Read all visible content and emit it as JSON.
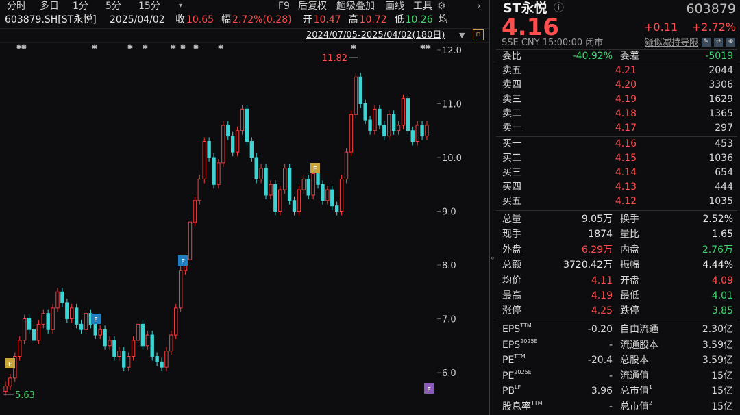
{
  "toolbar": {
    "tabs": [
      "分时",
      "多日",
      "1分",
      "5分",
      "15分"
    ],
    "tools": [
      "F9",
      "后复权",
      "超级叠加",
      "画线",
      "工具"
    ]
  },
  "info": {
    "code": "603879.SH[ST永悦]",
    "date": "2025/04/02",
    "items": [
      {
        "label": "收",
        "value": "10.65",
        "color": "#ff4d4d"
      },
      {
        "label": "幅",
        "value": "2.72%(0.28)",
        "color": "#ff4d4d"
      },
      {
        "label": "开",
        "value": "10.47",
        "color": "#ff4d4d"
      },
      {
        "label": "高",
        "value": "10.72",
        "color": "#ff4d4d"
      },
      {
        "label": "低",
        "value": "10.26",
        "color": "#3fd46f"
      }
    ],
    "avg": "均"
  },
  "range": "2024/07/05-2025/04/02(180日)",
  "chart": {
    "ylim": [
      5.3,
      12.14
    ],
    "yticks": [
      {
        "value": 12,
        "label": "12.0"
      },
      {
        "value": 11,
        "label": "11.0"
      },
      {
        "value": 10,
        "label": "10.0"
      },
      {
        "value": 9,
        "label": "9.0"
      },
      {
        "value": 8,
        "label": "8.0"
      },
      {
        "value": 7,
        "label": "7.0"
      },
      {
        "value": 6,
        "label": "6.0"
      }
    ],
    "up_color": "#ff3b3b",
    "down_color": "#3fd3d3",
    "high_label": "11.82",
    "low_label": "5.63",
    "close": [
      5.75,
      5.9,
      6.3,
      6.6,
      7.0,
      6.8,
      6.6,
      6.9,
      7.1,
      6.8,
      7.2,
      7.5,
      7.3,
      7.0,
      7.2,
      6.9,
      6.8,
      7.1,
      6.9,
      6.7,
      6.8,
      6.5,
      6.6,
      6.3,
      6.4,
      6.1,
      6.3,
      6.6,
      6.9,
      6.5,
      6.7,
      6.3,
      6.2,
      6.1,
      6.4,
      6.7,
      7.2,
      7.9,
      8.1,
      8.8,
      9.2,
      9.6,
      10.3,
      10.0,
      9.5,
      9.9,
      10.6,
      10.4,
      10.1,
      10.5,
      10.9,
      10.3,
      10.0,
      9.6,
      9.8,
      9.3,
      9.5,
      9.0,
      9.4,
      9.8,
      9.2,
      9.0,
      9.4,
      9.6,
      9.3,
      9.7,
      9.5,
      9.2,
      9.4,
      9.1,
      9.0,
      9.6,
      10.1,
      10.8,
      11.5,
      11.0,
      10.7,
      10.5,
      10.9,
      10.6,
      10.4,
      10.8,
      10.5,
      10.6,
      11.1,
      10.5,
      10.3,
      10.6,
      10.4,
      10.6
    ],
    "events": [
      {
        "label": "E",
        "color": "#c9a43c"
      },
      {
        "label": "F",
        "color": "#1f7fc0"
      },
      {
        "label": "F",
        "color": "#1f7fc0"
      },
      {
        "label": "E",
        "color": "#c9a43c"
      },
      {
        "label": "F",
        "color": "#8a5ab8"
      }
    ]
  },
  "quote": {
    "name": "ST永悦",
    "code": "603879",
    "price": "4.16",
    "change": "+0.11",
    "pct": "+2.72%",
    "meta": "SSE  CNY  15:00:00  闭市",
    "tag": "疑似减持导限",
    "ratio": {
      "label": "委比",
      "value": "-40.92%",
      "label2": "委差",
      "value2": "-5019"
    },
    "asks": [
      {
        "label": "卖五",
        "price": "4.21",
        "volume": "2044"
      },
      {
        "label": "卖四",
        "price": "4.20",
        "volume": "3306"
      },
      {
        "label": "卖三",
        "price": "4.19",
        "volume": "1629"
      },
      {
        "label": "卖二",
        "price": "4.18",
        "volume": "1365"
      },
      {
        "label": "卖一",
        "price": "4.17",
        "volume": "297"
      }
    ],
    "bids": [
      {
        "label": "买一",
        "price": "4.16",
        "volume": "453"
      },
      {
        "label": "买二",
        "price": "4.15",
        "volume": "1036"
      },
      {
        "label": "买三",
        "price": "4.14",
        "volume": "654"
      },
      {
        "label": "买四",
        "price": "4.13",
        "volume": "444"
      },
      {
        "label": "买五",
        "price": "4.12",
        "volume": "1035"
      }
    ],
    "stats": [
      [
        {
          "label": "总量",
          "value": "9.05万",
          "color": "#e6e6e6"
        },
        {
          "label": "换手",
          "value": "2.52%",
          "color": "#e6e6e6"
        }
      ],
      [
        {
          "label": "现手",
          "value": "1874",
          "color": "#e6e6e6"
        },
        {
          "label": "量比",
          "value": "1.65",
          "color": "#e6e6e6"
        }
      ],
      [
        {
          "label": "外盘",
          "value": "6.29万",
          "color": "#ff4d4d"
        },
        {
          "label": "内盘",
          "value": "2.76万",
          "color": "#3fd46f"
        }
      ],
      [
        {
          "label": "总额",
          "value": "3720.42万",
          "color": "#e6e6e6"
        },
        {
          "label": "振幅",
          "value": "4.44%",
          "color": "#e6e6e6"
        }
      ],
      [
        {
          "label": "均价",
          "value": "4.11",
          "color": "#ff4d4d"
        },
        {
          "label": "开盘",
          "value": "4.09",
          "color": "#ff4d4d"
        }
      ],
      [
        {
          "label": "最高",
          "value": "4.19",
          "color": "#ff4d4d"
        },
        {
          "label": "最低",
          "value": "4.01",
          "color": "#3fd46f"
        }
      ],
      [
        {
          "label": "涨停",
          "value": "4.25",
          "color": "#ff4d4d"
        },
        {
          "label": "跌停",
          "value": "3.85",
          "color": "#3fd46f"
        }
      ]
    ],
    "fundamentals": [
      [
        {
          "label": "EPS",
          "sup": "TTM",
          "value": "-0.20"
        },
        {
          "label": "自由流通",
          "value": "2.30亿"
        }
      ],
      [
        {
          "label": "EPS",
          "sup": "2025E",
          "value": "-"
        },
        {
          "label": "流通股本",
          "value": "3.59亿"
        }
      ],
      [
        {
          "label": "PE",
          "sup": "TTM",
          "value": "-20.4"
        },
        {
          "label": "总股本",
          "value": "3.59亿"
        }
      ],
      [
        {
          "label": "PE",
          "sup": "2025E",
          "value": "-"
        },
        {
          "label": "流通值",
          "value": "15亿"
        }
      ],
      [
        {
          "label": "PB",
          "sup": "LF",
          "value": "3.96"
        },
        {
          "label": "总市值",
          "sup": "1",
          "value": "15亿"
        }
      ],
      [
        {
          "label": "股息率",
          "sup": "TTM",
          "value": "-"
        },
        {
          "label": "总市值",
          "sup": "2",
          "value": "15亿"
        }
      ]
    ]
  }
}
